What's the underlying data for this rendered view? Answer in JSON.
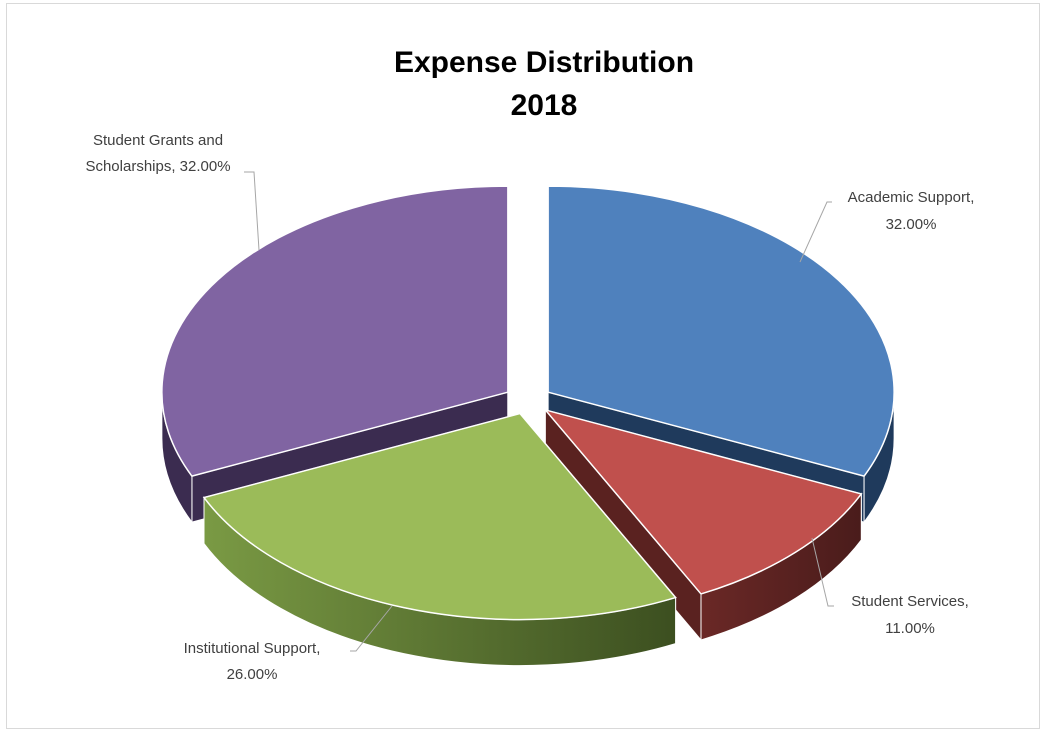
{
  "chart_data": {
    "type": "pie",
    "title": [
      "Expense Distribution",
      "2018"
    ],
    "slices": [
      {
        "name": "Academic Support",
        "value": 32.0,
        "label_line1": "Academic Support,",
        "label_line2": "32.00%",
        "color": "#4f81bd",
        "side_color": "#1f3a5c"
      },
      {
        "name": "Student Services",
        "value": 11.0,
        "label_line1": "Student Services,",
        "label_line2": "11.00%",
        "color": "#c0504d",
        "side_color": "#5a2220"
      },
      {
        "name": "Institutional Support",
        "value": 26.0,
        "label_line1": "Institutional Support,",
        "label_line2": "26.00%",
        "color": "#9bbb59",
        "side_color": "#4f6a2a"
      },
      {
        "name": "Student Grants and Scholarships",
        "value": 32.0,
        "label_line1": "Student Grants and",
        "label_line2": "Scholarships, 32.00%",
        "color": "#8064a2",
        "side_color": "#3b2c50"
      }
    ],
    "exploded": true,
    "style": "3d"
  }
}
